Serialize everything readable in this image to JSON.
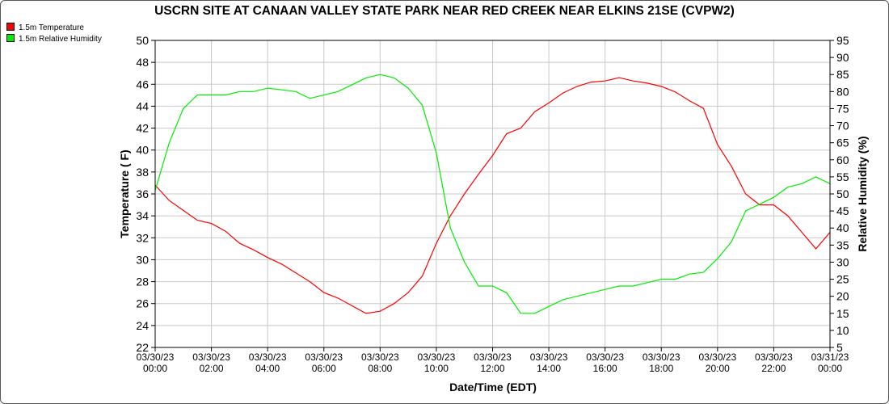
{
  "chart_data": {
    "type": "line",
    "title": "USCRN SITE AT CANAAN VALLEY STATE PARK NEAR RED CREEK NEAR ELKINS 21SE (CVPW2)",
    "xlabel": "Date/Time (EDT)",
    "ylabel": "Temperature ( F)",
    "y2label": "Relative Humidity (%)",
    "xlim_hours": [
      0,
      24
    ],
    "ylim": [
      22,
      50
    ],
    "y2lim": [
      5,
      95
    ],
    "grid": true,
    "legend_position": "top-left",
    "x_ticks": [
      {
        "date": "03/30/23",
        "time": "00:00"
      },
      {
        "date": "03/30/23",
        "time": "02:00"
      },
      {
        "date": "03/30/23",
        "time": "04:00"
      },
      {
        "date": "03/30/23",
        "time": "06:00"
      },
      {
        "date": "03/30/23",
        "time": "08:00"
      },
      {
        "date": "03/30/23",
        "time": "10:00"
      },
      {
        "date": "03/30/23",
        "time": "12:00"
      },
      {
        "date": "03/30/23",
        "time": "14:00"
      },
      {
        "date": "03/30/23",
        "time": "16:00"
      },
      {
        "date": "03/30/23",
        "time": "18:00"
      },
      {
        "date": "03/30/23",
        "time": "20:00"
      },
      {
        "date": "03/30/23",
        "time": "22:00"
      },
      {
        "date": "03/31/23",
        "time": "00:00"
      }
    ],
    "y_ticks": [
      "22",
      "24",
      "26",
      "28",
      "30",
      "32",
      "34",
      "36",
      "38",
      "40",
      "42",
      "44",
      "46",
      "48",
      "50"
    ],
    "y2_ticks": [
      "5",
      "10",
      "15",
      "20",
      "25",
      "30",
      "35",
      "40",
      "45",
      "50",
      "55",
      "60",
      "65",
      "70",
      "75",
      "80",
      "85",
      "90",
      "95"
    ],
    "x_hours": [
      0,
      0.5,
      1,
      1.5,
      2,
      2.5,
      3,
      3.5,
      4,
      4.5,
      5,
      5.5,
      6,
      6.5,
      7,
      7.5,
      8,
      8.5,
      9,
      9.5,
      10,
      10.5,
      11,
      11.5,
      12,
      12.5,
      13,
      13.5,
      14,
      14.5,
      15,
      15.5,
      16,
      16.5,
      17,
      17.5,
      18,
      18.5,
      19,
      19.5,
      20,
      20.5,
      21,
      21.5,
      22,
      22.5,
      23,
      23.5,
      24
    ],
    "series": [
      {
        "name": "1.5m Temperature",
        "axis": "left",
        "color": "#ff0000",
        "values": [
          36.8,
          35.4,
          34.5,
          33.6,
          33.3,
          32.6,
          31.5,
          30.9,
          30.2,
          29.6,
          28.8,
          28.0,
          27.0,
          26.5,
          25.8,
          25.1,
          25.3,
          26.0,
          27.0,
          28.5,
          31.5,
          34.0,
          36.0,
          37.8,
          39.5,
          41.5,
          42.0,
          43.5,
          44.3,
          45.2,
          45.8,
          46.2,
          46.3,
          46.6,
          46.3,
          46.1,
          45.8,
          45.3,
          44.5,
          43.8,
          40.5,
          38.5,
          36.0,
          35.0,
          35.0,
          34.0,
          32.5,
          31.0,
          32.5
        ]
      },
      {
        "name": "1.5m Relative Humidity",
        "axis": "right",
        "color": "#00ee00",
        "values": [
          51,
          65,
          75,
          79,
          79,
          79,
          80,
          80,
          81,
          80.5,
          80,
          78,
          79,
          80,
          82,
          84,
          85,
          84,
          81,
          76,
          62,
          40,
          30,
          23,
          23,
          21,
          15,
          15,
          17,
          19,
          20,
          21,
          22,
          23,
          23,
          24,
          25,
          25,
          26.5,
          27,
          31,
          36,
          45,
          47,
          49,
          52,
          53,
          55,
          53
        ]
      }
    ]
  }
}
